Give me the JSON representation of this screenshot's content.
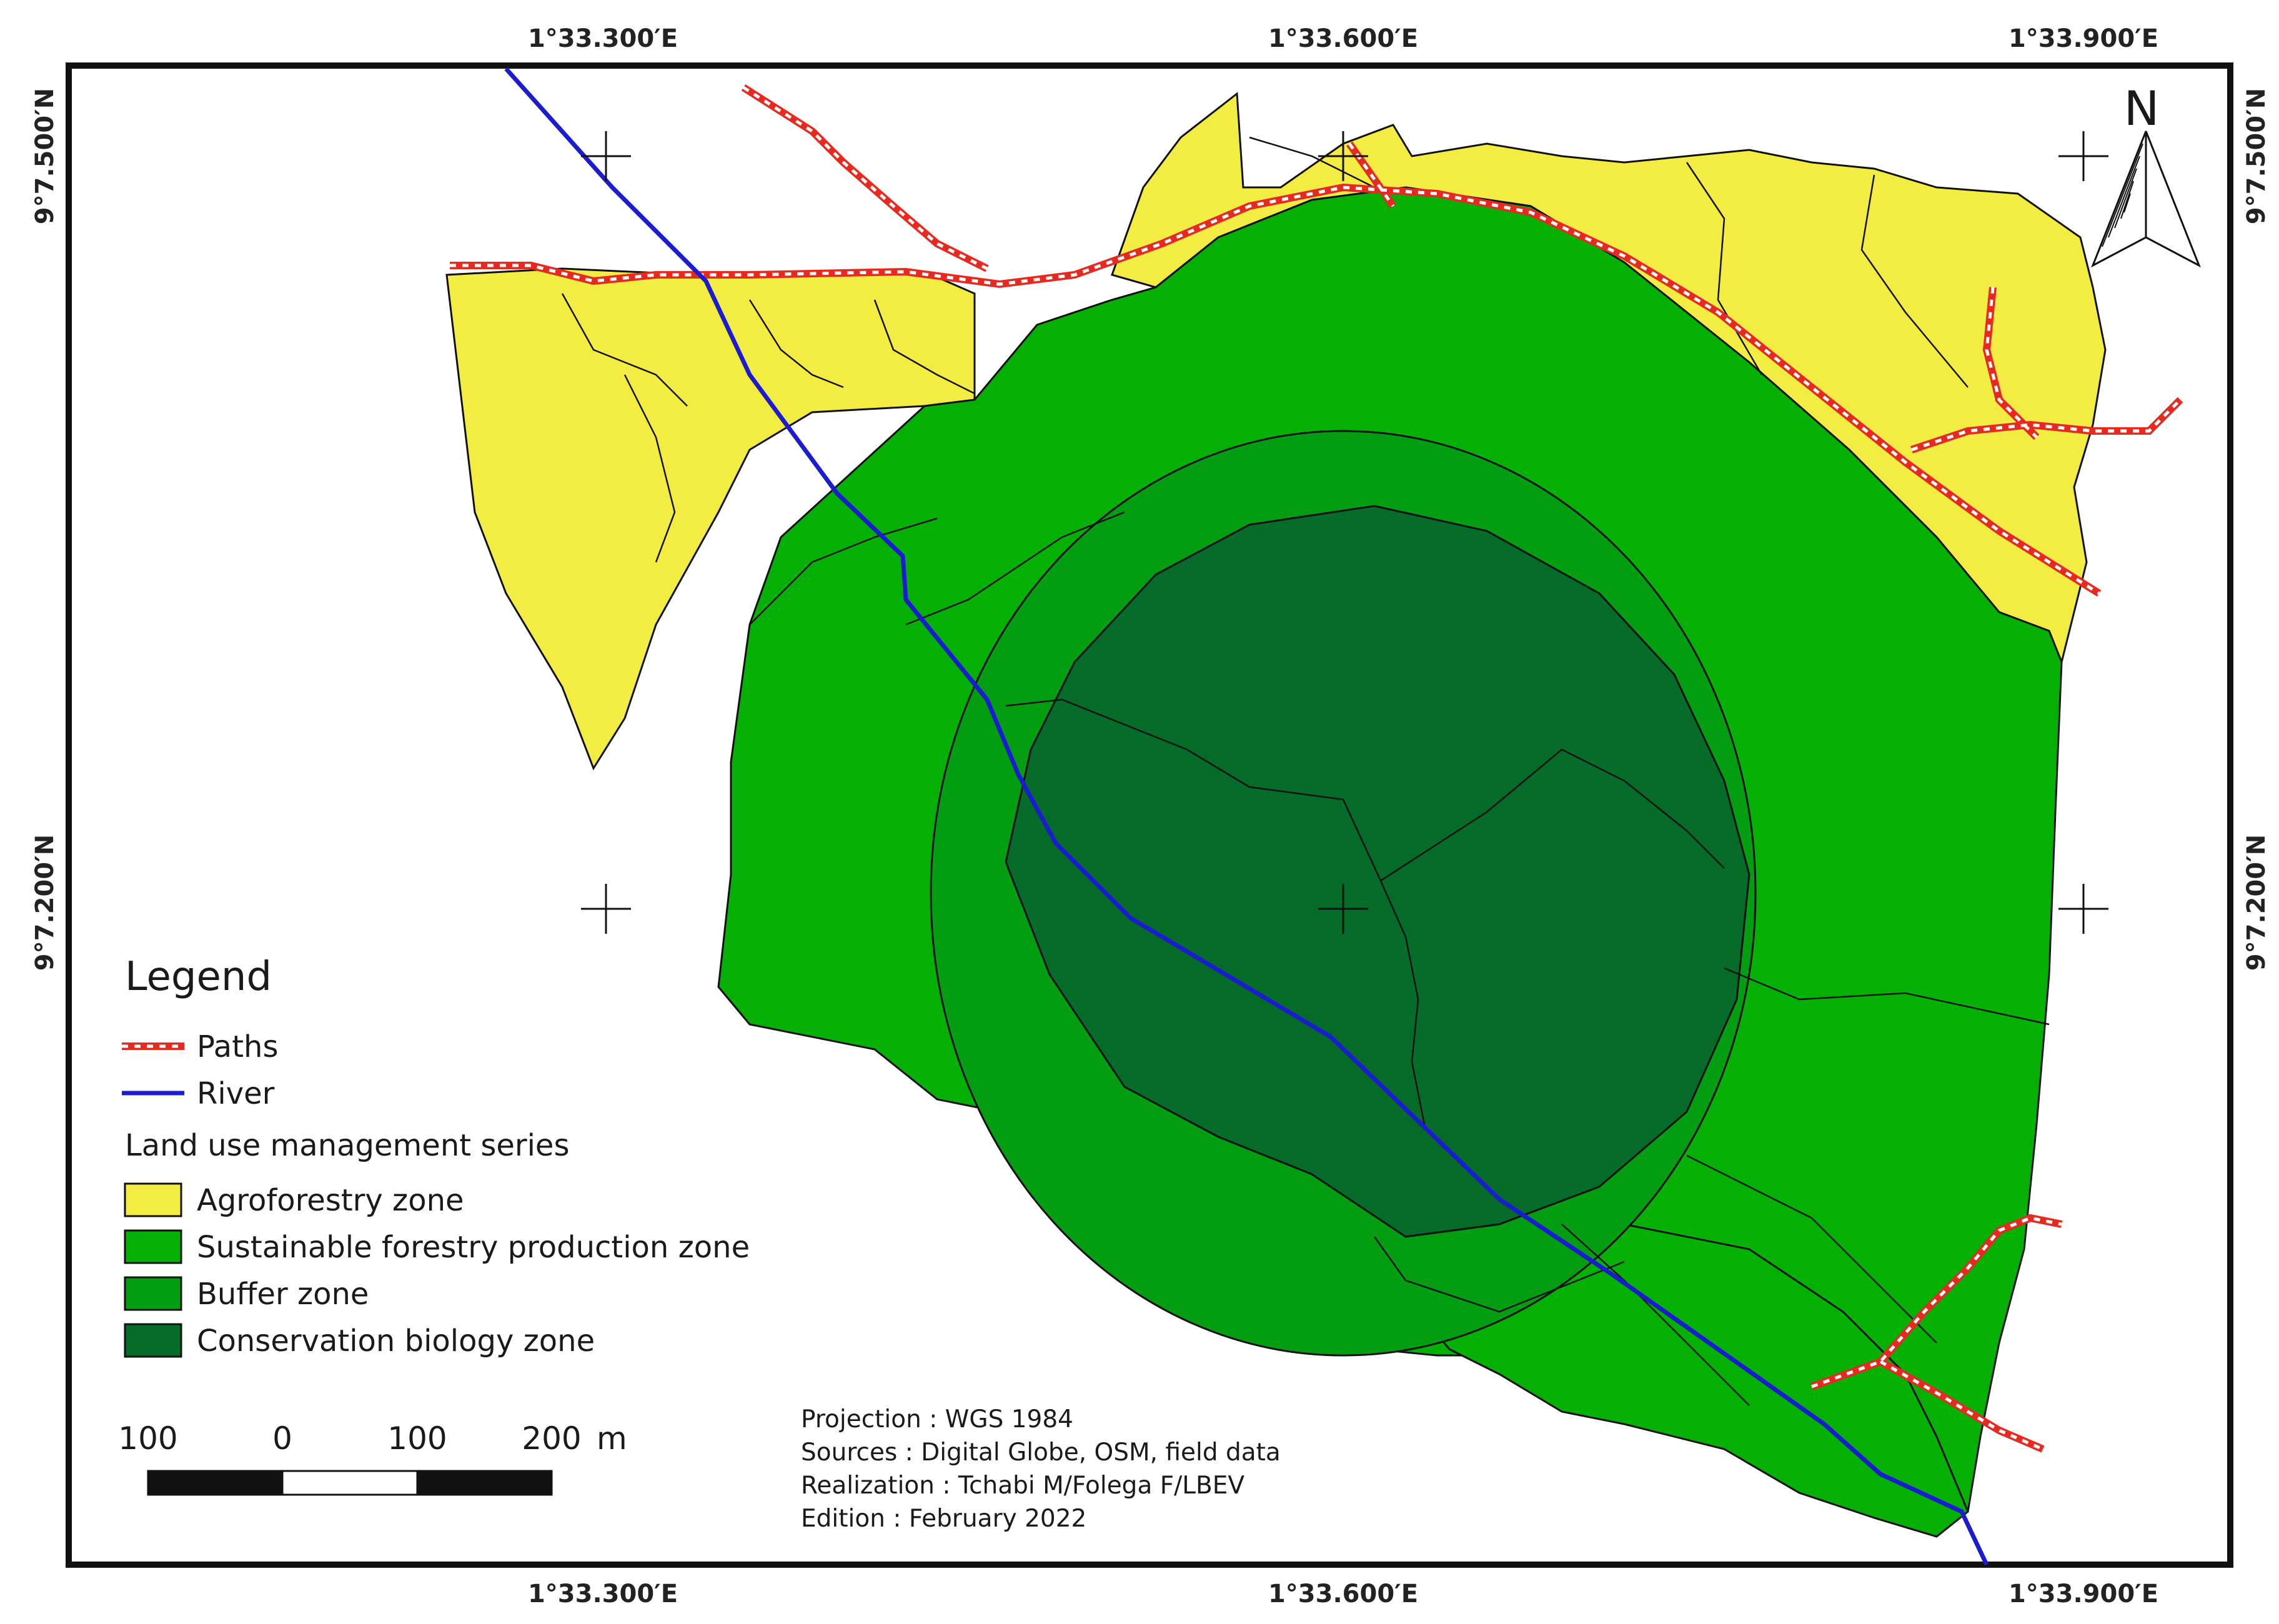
{
  "map": {
    "coords": {
      "top": [
        "1°33.300′E",
        "1°33.600′E",
        "1°33.900′E"
      ],
      "bottom": [
        "1°33.300′E",
        "1°33.600′E",
        "1°33.900′E"
      ],
      "left": [
        "9°7.500′N",
        "9°7.200′N"
      ],
      "right": [
        "9°7.500′N",
        "9°7.200′N"
      ]
    },
    "north_label": "N",
    "colors": {
      "agroforestry": "#f2ec43",
      "sustainable": "#04b003",
      "buffer": "#039d12",
      "conservation": "#046b29",
      "river": "#1b1bd0",
      "path_red": "#e8291f"
    }
  },
  "legend": {
    "title": "Legend",
    "lines": [
      {
        "label": "Paths",
        "kind": "path"
      },
      {
        "label": "River",
        "kind": "river"
      }
    ],
    "series_title": "Land use management series",
    "zones": [
      {
        "label": "Agroforestry zone",
        "color": "#f2ec43"
      },
      {
        "label": "Sustainable forestry production zone",
        "color": "#04b003"
      },
      {
        "label": "Buffer zone",
        "color": "#039d12"
      },
      {
        "label": "Conservation biology zone",
        "color": "#046b29"
      }
    ]
  },
  "scale": {
    "labels": [
      "100",
      "0",
      "100",
      "200"
    ],
    "unit": "m"
  },
  "metadata": {
    "projection": "Projection : WGS 1984",
    "sources": "Sources : Digital Globe, OSM, field data",
    "realization": "Realization : Tchabi M/Folega F/LBEV",
    "edition": "Edition : February 2022"
  }
}
